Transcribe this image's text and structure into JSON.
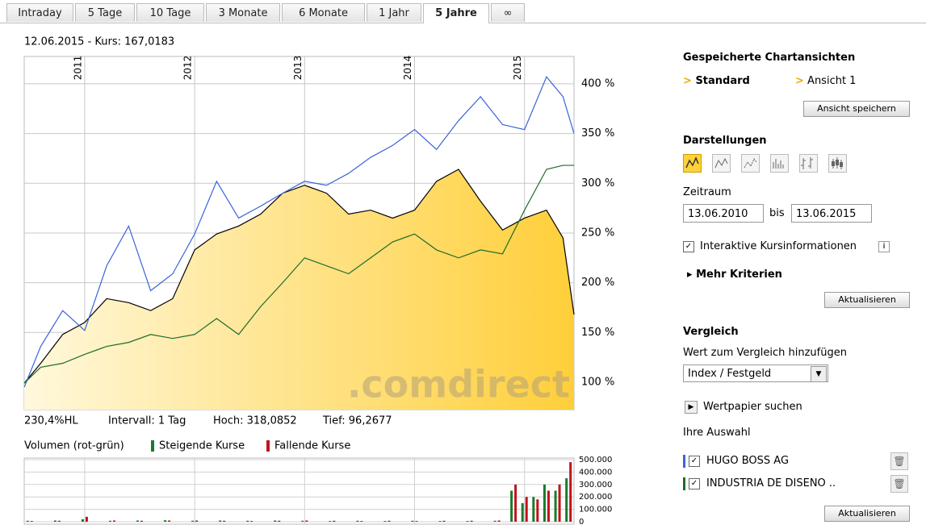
{
  "tabs": [
    "Intraday",
    "5 Tage",
    "10 Tage",
    "3 Monate",
    "6 Monate",
    "1 Jahr",
    "5 Jahre",
    "∞"
  ],
  "active_tab": 6,
  "chart_data": [
    {
      "type": "line",
      "header": "12.06.2015  -  Kurs: 167,0183",
      "watermark": ".comdirect",
      "stats": [
        "230,4%HL",
        "Intervall: 1 Tag",
        "Hoch: 318,0852",
        "Tief: 96,2677"
      ],
      "x": [
        2010.45,
        2010.6,
        2010.8,
        2011.0,
        2011.2,
        2011.4,
        2011.6,
        2011.8,
        2012.0,
        2012.2,
        2012.4,
        2012.6,
        2012.8,
        2013.0,
        2013.2,
        2013.4,
        2013.6,
        2013.8,
        2014.0,
        2014.2,
        2014.4,
        2014.6,
        2014.8,
        2015.0,
        2015.2,
        2015.35,
        2015.45
      ],
      "xlim": [
        2010.45,
        2015.45
      ],
      "xticks": [
        2011,
        2012,
        2013,
        2014,
        2015
      ],
      "ylim": [
        72.4,
        427.5
      ],
      "yticks": [
        {
          "value": 100,
          "label": "100 %"
        },
        {
          "value": 150,
          "label": "150 %"
        },
        {
          "value": 200,
          "label": "200 %"
        },
        {
          "value": 250,
          "label": "250 %"
        },
        {
          "value": 300,
          "label": "300 %"
        },
        {
          "value": 350,
          "label": "350 %"
        },
        {
          "value": 400,
          "label": "400 %"
        }
      ],
      "grid": true,
      "series": [
        {
          "color": "#000000",
          "fill": true,
          "values": [
            99,
            119,
            148,
            160,
            184,
            180,
            172,
            184,
            233,
            249,
            257,
            269,
            290,
            298,
            290,
            269,
            273,
            265,
            273,
            302,
            314,
            282,
            253,
            265,
            273,
            245,
            168
          ]
        },
        {
          "name": "HUGO BOSS AG",
          "color": "#3a64d8",
          "values": [
            95,
            136,
            172,
            152,
            217,
            257,
            192,
            209,
            249,
            302,
            265,
            277,
            290,
            302,
            298,
            310,
            326,
            338,
            354,
            334,
            363,
            387,
            359,
            354,
            407,
            387,
            350
          ]
        },
        {
          "name": "INDUSTRIA DE DISENO ..",
          "color": "#1e6b2a",
          "values": [
            99,
            115,
            119,
            128,
            136,
            140,
            148,
            144,
            148,
            164,
            148,
            176,
            200,
            225,
            217,
            209,
            225,
            241,
            249,
            233,
            225,
            233,
            229,
            273,
            314,
            318,
            318
          ]
        }
      ]
    },
    {
      "type": "bar",
      "title": "Volumen (rot-grün)",
      "x": [
        2010.5,
        2010.75,
        2011.0,
        2011.25,
        2011.5,
        2011.75,
        2012.0,
        2012.25,
        2012.5,
        2012.75,
        2013.0,
        2013.25,
        2013.5,
        2013.75,
        2014.0,
        2014.25,
        2014.5,
        2014.75,
        2014.9,
        2015.0,
        2015.1,
        2015.2,
        2015.3,
        2015.4
      ],
      "xlim": [
        2010.45,
        2015.45
      ],
      "xticks": [
        2011,
        2012,
        2013,
        2014,
        2015
      ],
      "ylim": [
        0,
        500000
      ],
      "yticks": [
        {
          "value": 500000,
          "label": "500.000"
        },
        {
          "value": 400000,
          "label": "400.000"
        },
        {
          "value": 300000,
          "label": "300.000"
        },
        {
          "value": 200000,
          "label": "200.000"
        },
        {
          "value": 100000,
          "label": "100.000"
        },
        0
      ],
      "grid": true,
      "series": [
        {
          "name": "Steigende Kurse",
          "color": "#1a7a2e",
          "values": [
            8000,
            10000,
            20000,
            8000,
            10000,
            12000,
            8000,
            10000,
            8000,
            10000,
            8000,
            6000,
            8000,
            6000,
            8000,
            6000,
            6000,
            8000,
            250000,
            150000,
            200000,
            300000,
            250000,
            350000
          ]
        },
        {
          "name": "Fallende Kurse",
          "color": "#c0141a",
          "values": [
            6000,
            8000,
            40000,
            10000,
            8000,
            10000,
            10000,
            8000,
            6000,
            8000,
            10000,
            8000,
            6000,
            8000,
            6000,
            8000,
            8000,
            10000,
            300000,
            200000,
            180000,
            250000,
            300000,
            480000
          ]
        }
      ]
    }
  ],
  "sidebar": {
    "saved_title": "Gespeicherte Chartansichten",
    "views": [
      "Standard",
      "Ansicht 1"
    ],
    "save_button": "Ansicht speichern",
    "display_title": "Darstellungen",
    "period_label": "Zeitraum",
    "from": "13.06.2010",
    "to_label": "bis",
    "to": "13.06.2015",
    "interactive": "Interaktive Kursinformationen",
    "more": "Mehr Kriterien",
    "update": "Aktualisieren",
    "compare_title": "Vergleich",
    "compare_label": "Wert zum Vergleich hinzufügen",
    "compare_select": "Index / Festgeld",
    "search": "Wertpapier suchen",
    "selection_title": "Ihre Auswahl",
    "update2": "Aktualisieren"
  }
}
